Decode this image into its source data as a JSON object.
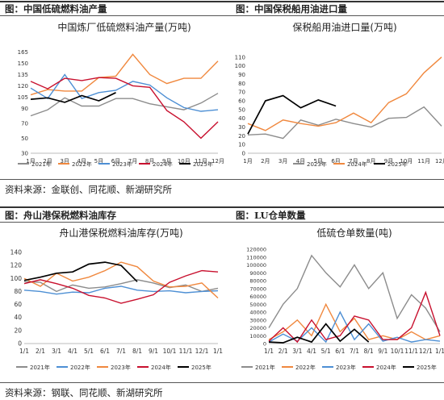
{
  "sections": {
    "top_left_title": "图：中国低硫燃料油产量",
    "top_right_title": "图：中国保税船用油进口量",
    "source_top": "资料来源：金联创、同花顺、新湖研究所",
    "bottom_left_title": "图：舟山港保税燃料油库存",
    "bottom_right_title": "图：LU仓单数量",
    "source_bottom": "资料来源：钢联、同花顺、新湖研究所"
  },
  "chart_data": [
    {
      "id": "production",
      "type": "line",
      "title": "中国炼厂低硫燃料油产量(万吨)",
      "categories": [
        "1月",
        "2月",
        "3月",
        "4月",
        "5月",
        "6月",
        "7月",
        "8月",
        "9月",
        "10月",
        "11月",
        "12月"
      ],
      "ylim": [
        30,
        170
      ],
      "yticks": [
        30,
        50,
        70,
        90,
        105,
        120,
        135,
        150,
        165
      ],
      "grid": false,
      "legend": "bottom",
      "series": [
        {
          "name": "2021年",
          "color": "#8c8c8c",
          "values": [
            80,
            88,
            104,
            93,
            93,
            103,
            103,
            96,
            92,
            88,
            97,
            110
          ]
        },
        {
          "name": "2022年",
          "color": "#f0883e",
          "values": [
            108,
            115,
            113,
            113,
            131,
            133,
            162,
            135,
            123,
            130,
            130,
            153
          ]
        },
        {
          "name": "2023年",
          "color": "#4d8fd4",
          "values": [
            117,
            103,
            135,
            103,
            111,
            114,
            126,
            121,
            104,
            91,
            86,
            88
          ]
        },
        {
          "name": "2024年",
          "color": "#c8102e",
          "values": [
            126,
            116,
            130,
            127,
            131,
            130,
            120,
            118,
            87,
            72,
            50,
            72
          ]
        },
        {
          "name": "2025年",
          "color": "#000000",
          "values": [
            102,
            104,
            98,
            107,
            100,
            111,
            null,
            null,
            null,
            null,
            null,
            null
          ]
        }
      ]
    },
    {
      "id": "imports",
      "type": "line",
      "title": "保税船用油进口量(万吨)",
      "categories": [
        "1月",
        "2月",
        "3月",
        "4月",
        "5月",
        "6月",
        "7月",
        "8月",
        "9月",
        "10月",
        "11月",
        "12月"
      ],
      "ylim": [
        0,
        120
      ],
      "yticks": [
        0,
        10,
        20,
        30,
        40,
        50,
        60,
        70,
        80,
        90,
        100,
        110
      ],
      "grid": false,
      "legend": "bottom",
      "series": [
        {
          "name": "2023年",
          "color": "#8c8c8c",
          "values": [
            21,
            22,
            17,
            38,
            32,
            39,
            34,
            30,
            40,
            41,
            53,
            31
          ]
        },
        {
          "name": "2024年",
          "color": "#f0883e",
          "values": [
            34,
            26,
            38,
            34,
            31,
            35,
            46,
            35,
            58,
            68,
            92,
            110
          ]
        },
        {
          "name": "2025年",
          "color": "#000000",
          "values": [
            22,
            60,
            66,
            52,
            61,
            54,
            null,
            null,
            null,
            null,
            null,
            null
          ]
        }
      ]
    },
    {
      "id": "zhoushan",
      "type": "line",
      "title": "舟山港保税燃料油库存(万吨)",
      "categories": [
        "1/1",
        "2/1",
        "3/1",
        "4/1",
        "5/1",
        "6/1",
        "7/1",
        "8/1",
        "9/1",
        "10/1",
        "11/1",
        "12/1",
        "1/1"
      ],
      "ylim": [
        0,
        140
      ],
      "yticks": [
        0,
        20,
        40,
        60,
        80,
        100,
        120,
        140
      ],
      "grid": false,
      "legend": "bottom",
      "series": [
        {
          "name": "2021年",
          "color": "#8c8c8c",
          "values": [
            95,
            94,
            80,
            90,
            85,
            87,
            92,
            98,
            93,
            86,
            90,
            80,
            85
          ]
        },
        {
          "name": "2022年",
          "color": "#4d8fd4",
          "values": [
            82,
            80,
            76,
            79,
            78,
            85,
            88,
            82,
            80,
            81,
            78,
            80,
            81
          ]
        },
        {
          "name": "2023年",
          "color": "#f0883e",
          "values": [
            100,
            88,
            108,
            96,
            102,
            112,
            125,
            118,
            96,
            87,
            88,
            93,
            70
          ]
        },
        {
          "name": "2024年",
          "color": "#c8102e",
          "values": [
            92,
            98,
            92,
            85,
            74,
            70,
            62,
            68,
            75,
            94,
            104,
            112,
            110
          ]
        },
        {
          "name": "2025年",
          "color": "#000000",
          "values": [
            97,
            102,
            108,
            110,
            122,
            125,
            120,
            95,
            null,
            null,
            null,
            null,
            null
          ]
        }
      ]
    },
    {
      "id": "warrants",
      "type": "line",
      "title": "低硫仓单数量(吨)",
      "categories": [
        "1/1",
        "2/1",
        "3/1",
        "4/1",
        "5/1",
        "6/1",
        "7/1",
        "8/1",
        "9/1",
        "10/1",
        "11/1",
        "12/1",
        "1/1"
      ],
      "ylim": [
        0,
        120000
      ],
      "yticks": [
        0,
        10000,
        20000,
        30000,
        40000,
        50000,
        60000,
        70000,
        80000,
        90000,
        100000,
        110000,
        120000
      ],
      "grid": false,
      "legend": "bottom",
      "series": [
        {
          "name": "2021年",
          "color": "#8c8c8c",
          "values": [
            20000,
            50000,
            70000,
            112000,
            90000,
            72000,
            100000,
            70000,
            90000,
            32000,
            62000,
            45000,
            15000
          ]
        },
        {
          "name": "2022年",
          "color": "#f0883e",
          "values": [
            5000,
            15000,
            30000,
            10000,
            50000,
            15000,
            32000,
            5000,
            10000,
            5000,
            15000,
            5000,
            10000
          ]
        },
        {
          "name": "2023年",
          "color": "#4d8fd4",
          "values": [
            2000,
            12000,
            3000,
            20000,
            2000,
            40000,
            5000,
            25000,
            3000,
            8000,
            2000,
            5000,
            3000
          ]
        },
        {
          "name": "2024年",
          "color": "#c8102e",
          "values": [
            3000,
            20000,
            2000,
            30000,
            5000,
            10000,
            35000,
            30000,
            5000,
            5000,
            20000,
            65000,
            10000
          ]
        },
        {
          "name": "2025年",
          "color": "#000000",
          "values": [
            2000,
            1000,
            8000,
            2000,
            25000,
            3000,
            18000,
            2000,
            null,
            null,
            null,
            null,
            null
          ]
        }
      ]
    }
  ]
}
